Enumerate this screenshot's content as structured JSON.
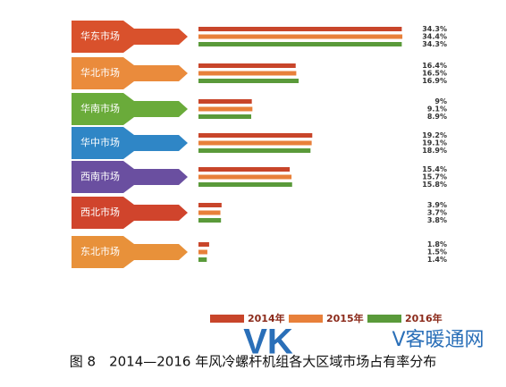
{
  "chart_data": {
    "type": "bar",
    "orientation": "horizontal",
    "title": "图 8　2014—2016 年风冷螺杆机组各大区域市场占有率分布",
    "categories": [
      "华东市场",
      "华北市场",
      "华南市场",
      "华中市场",
      "西南市场",
      "西北市场",
      "东北市场"
    ],
    "category_colors": [
      "#d9512c",
      "#ea8b3c",
      "#6aab3a",
      "#2f86c6",
      "#6a4fa0",
      "#d0442c",
      "#e8913a"
    ],
    "series": [
      {
        "name": "2014年",
        "color": "#c8452a",
        "values": [
          34.3,
          16.4,
          9,
          19.2,
          15.4,
          3.9,
          1.8
        ],
        "value_labels": [
          "34.3%",
          "16.4%",
          "9%",
          "19.2%",
          "15.4%",
          "3.9%",
          "1.8%"
        ]
      },
      {
        "name": "2015年",
        "color": "#e8803a",
        "values": [
          34.4,
          16.5,
          9.1,
          19.1,
          15.7,
          3.7,
          1.5
        ],
        "value_labels": [
          "34.4%",
          "16.5%",
          "9.1%",
          "19.1%",
          "15.7%",
          "3.7%",
          "1.5%"
        ]
      },
      {
        "name": "2016年",
        "color": "#5a9a3a",
        "values": [
          34.3,
          16.9,
          8.9,
          18.9,
          15.8,
          3.8,
          1.4
        ],
        "value_labels": [
          "34.3%",
          "16.9%",
          "8.9%",
          "18.9%",
          "15.8%",
          "3.8%",
          "1.4%"
        ]
      }
    ],
    "logo_mark": "VK",
    "logo_text": "V客暖通网"
  }
}
